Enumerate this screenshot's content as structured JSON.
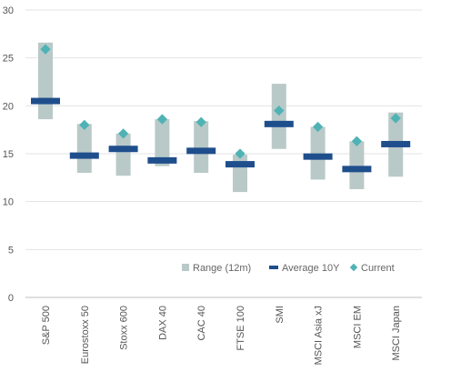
{
  "chart_data": {
    "type": "range-bar",
    "categories": [
      "S&P 500",
      "Eurostoxx 50",
      "Stoxx 600",
      "DAX 40",
      "CAC 40",
      "FTSE 100",
      "SMI",
      "MSCI Asia xJ",
      "MSCI EM",
      "MSCI Japan"
    ],
    "series": [
      {
        "name": "Range (12m)",
        "kind": "range",
        "low": [
          18.6,
          13.0,
          12.7,
          13.7,
          13.0,
          11.0,
          15.5,
          12.3,
          11.3,
          12.6
        ],
        "high": [
          26.6,
          18.1,
          17.1,
          18.6,
          18.4,
          14.9,
          22.3,
          17.8,
          16.3,
          19.3
        ],
        "color": "#b9c9c8"
      },
      {
        "name": "Average 10Y",
        "kind": "average",
        "values": [
          20.5,
          14.8,
          15.5,
          14.3,
          15.3,
          13.9,
          18.1,
          14.7,
          13.4,
          16.0
        ],
        "color": "#1f4e8c"
      },
      {
        "name": "Current",
        "kind": "current",
        "values": [
          25.9,
          18.0,
          17.1,
          18.6,
          18.3,
          15.0,
          19.5,
          17.8,
          16.3,
          18.7
        ],
        "color": "#4fb3b5"
      }
    ],
    "ylim": [
      0,
      30
    ],
    "yticks": [
      "0",
      "5",
      "10",
      "15",
      "20",
      "25",
      "30"
    ],
    "grid": true,
    "legend_position": "bottom-right",
    "title": "",
    "xlabel": "",
    "ylabel": ""
  }
}
